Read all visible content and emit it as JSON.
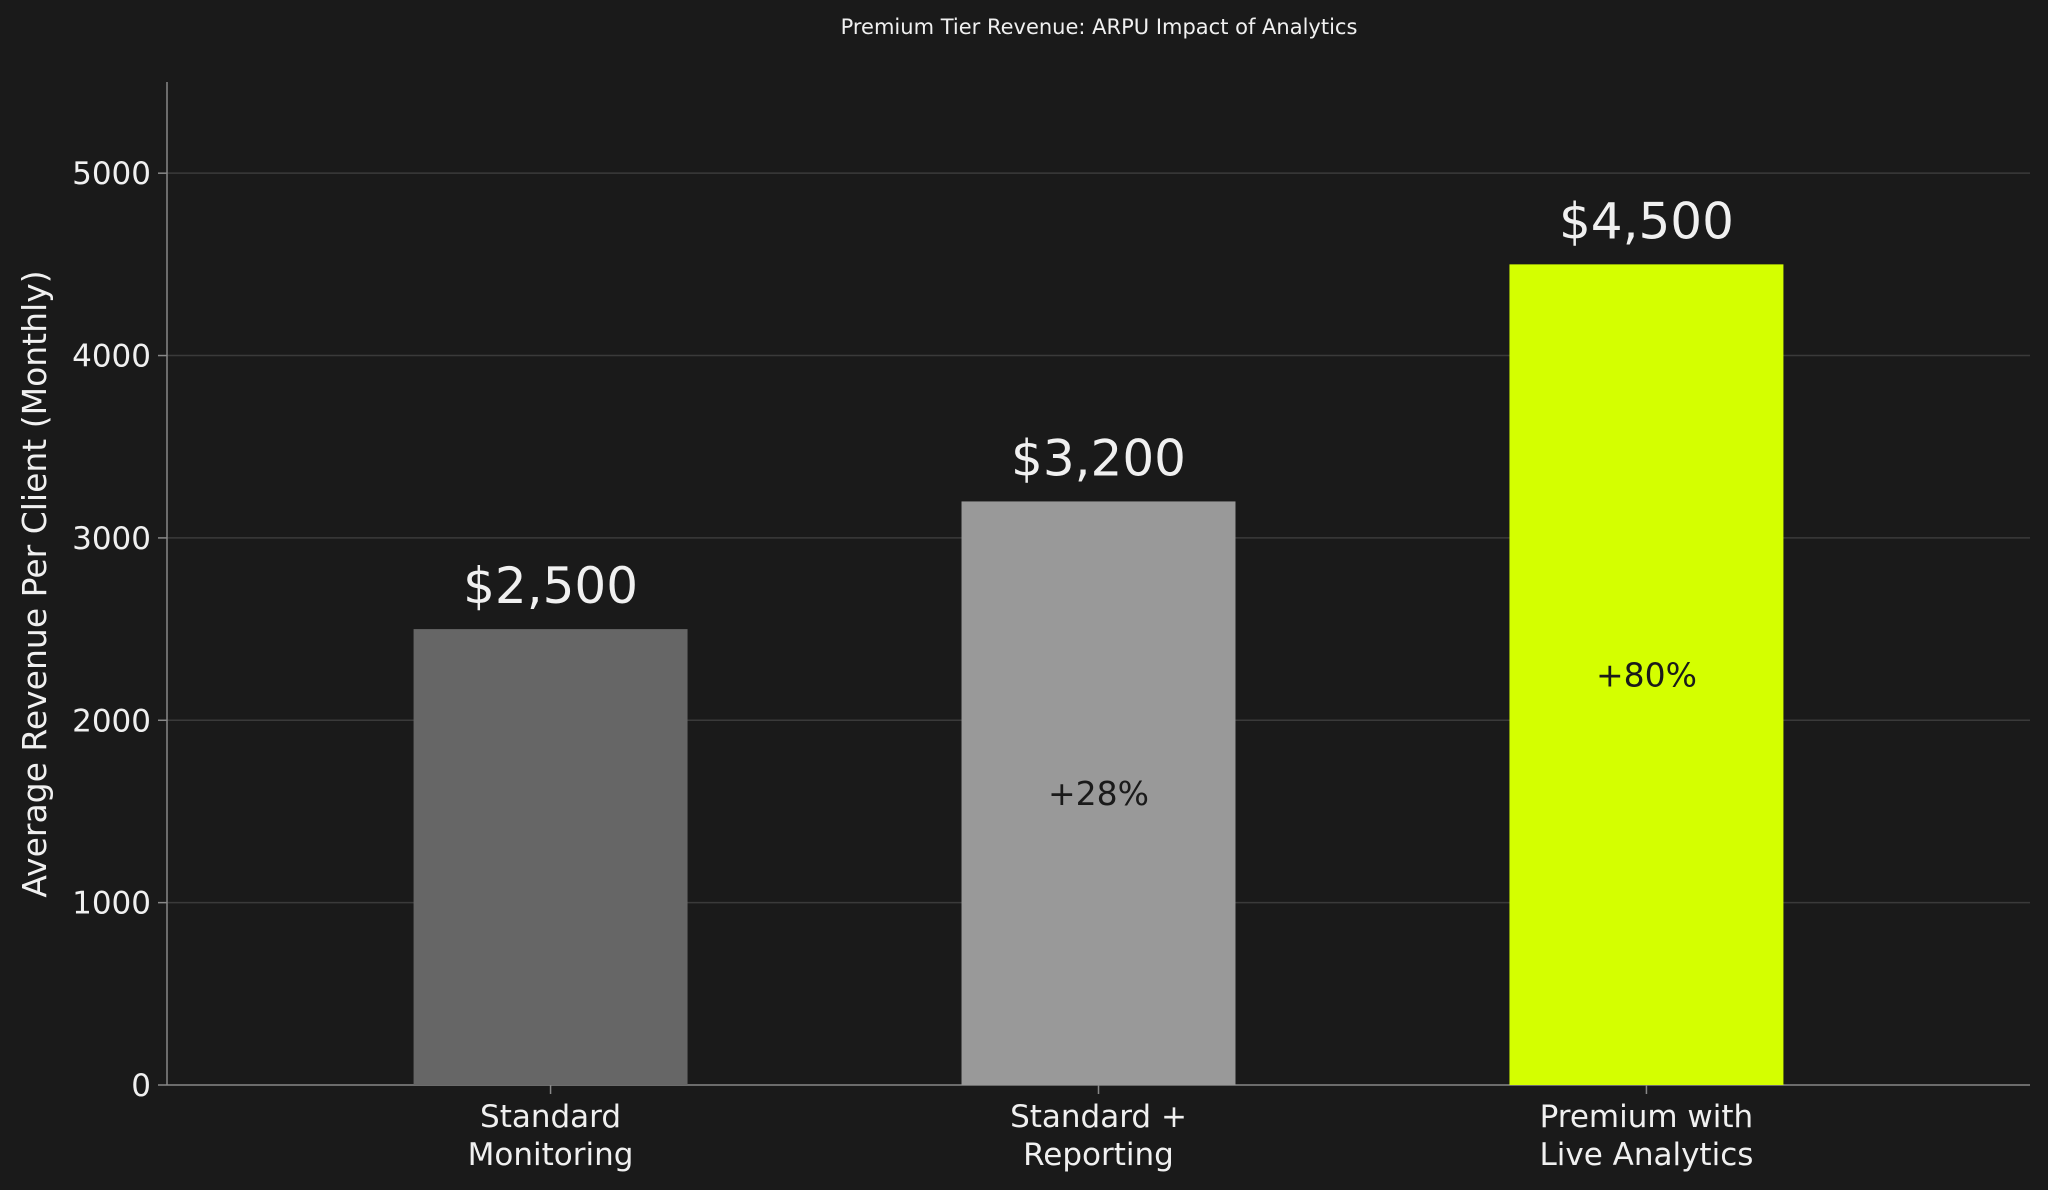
{
  "chart_data": {
    "type": "bar",
    "title": "Premium Tier Revenue: ARPU Impact of Analytics",
    "xlabel": "",
    "ylabel": "Average Revenue Per Client (Monthly)",
    "ylim": [
      0,
      5500
    ],
    "yticks": [
      0,
      1000,
      2000,
      3000,
      4000,
      5000
    ],
    "ytick_labels": [
      "0",
      "1000",
      "2000",
      "3000",
      "4000",
      "5000"
    ],
    "grid": true,
    "categories": [
      [
        "Standard",
        "Monitoring"
      ],
      [
        "Standard +",
        "Reporting"
      ],
      [
        "Premium with",
        "Live Analytics"
      ]
    ],
    "values": [
      2500,
      3200,
      4500
    ],
    "value_labels": [
      "$2,500",
      "$3,200",
      "$4,500"
    ],
    "pct_labels": [
      "",
      "+28%",
      "+80%"
    ],
    "colors": {
      "background": "#1a1a1a",
      "bars": [
        "#666666",
        "#999999",
        "#d4ff00"
      ],
      "grid": "#3a3a3a",
      "axis": "#888888",
      "text": "#f0f0f0",
      "pct_text": "#1a1a1a"
    }
  }
}
